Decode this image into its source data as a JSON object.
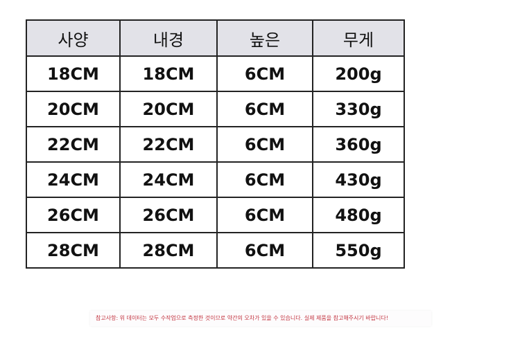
{
  "table": {
    "headers": [
      "사양",
      "내경",
      "높은",
      "무게"
    ],
    "rows": [
      [
        "18CM",
        "18CM",
        "6CM",
        "200g"
      ],
      [
        "20CM",
        "20CM",
        "6CM",
        "330g"
      ],
      [
        "22CM",
        "22CM",
        "6CM",
        "360g"
      ],
      [
        "24CM",
        "24CM",
        "6CM",
        "430g"
      ],
      [
        "26CM",
        "26CM",
        "6CM",
        "480g"
      ],
      [
        "28CM",
        "28CM",
        "6CM",
        "550g"
      ]
    ]
  },
  "note": "참고사항: 위 데이터는 모두 수작업으로 측정한 것이므로 약간의 오차가 있을 수 있습니다. 실제 제품을 참고해주시기 바랍니다!"
}
